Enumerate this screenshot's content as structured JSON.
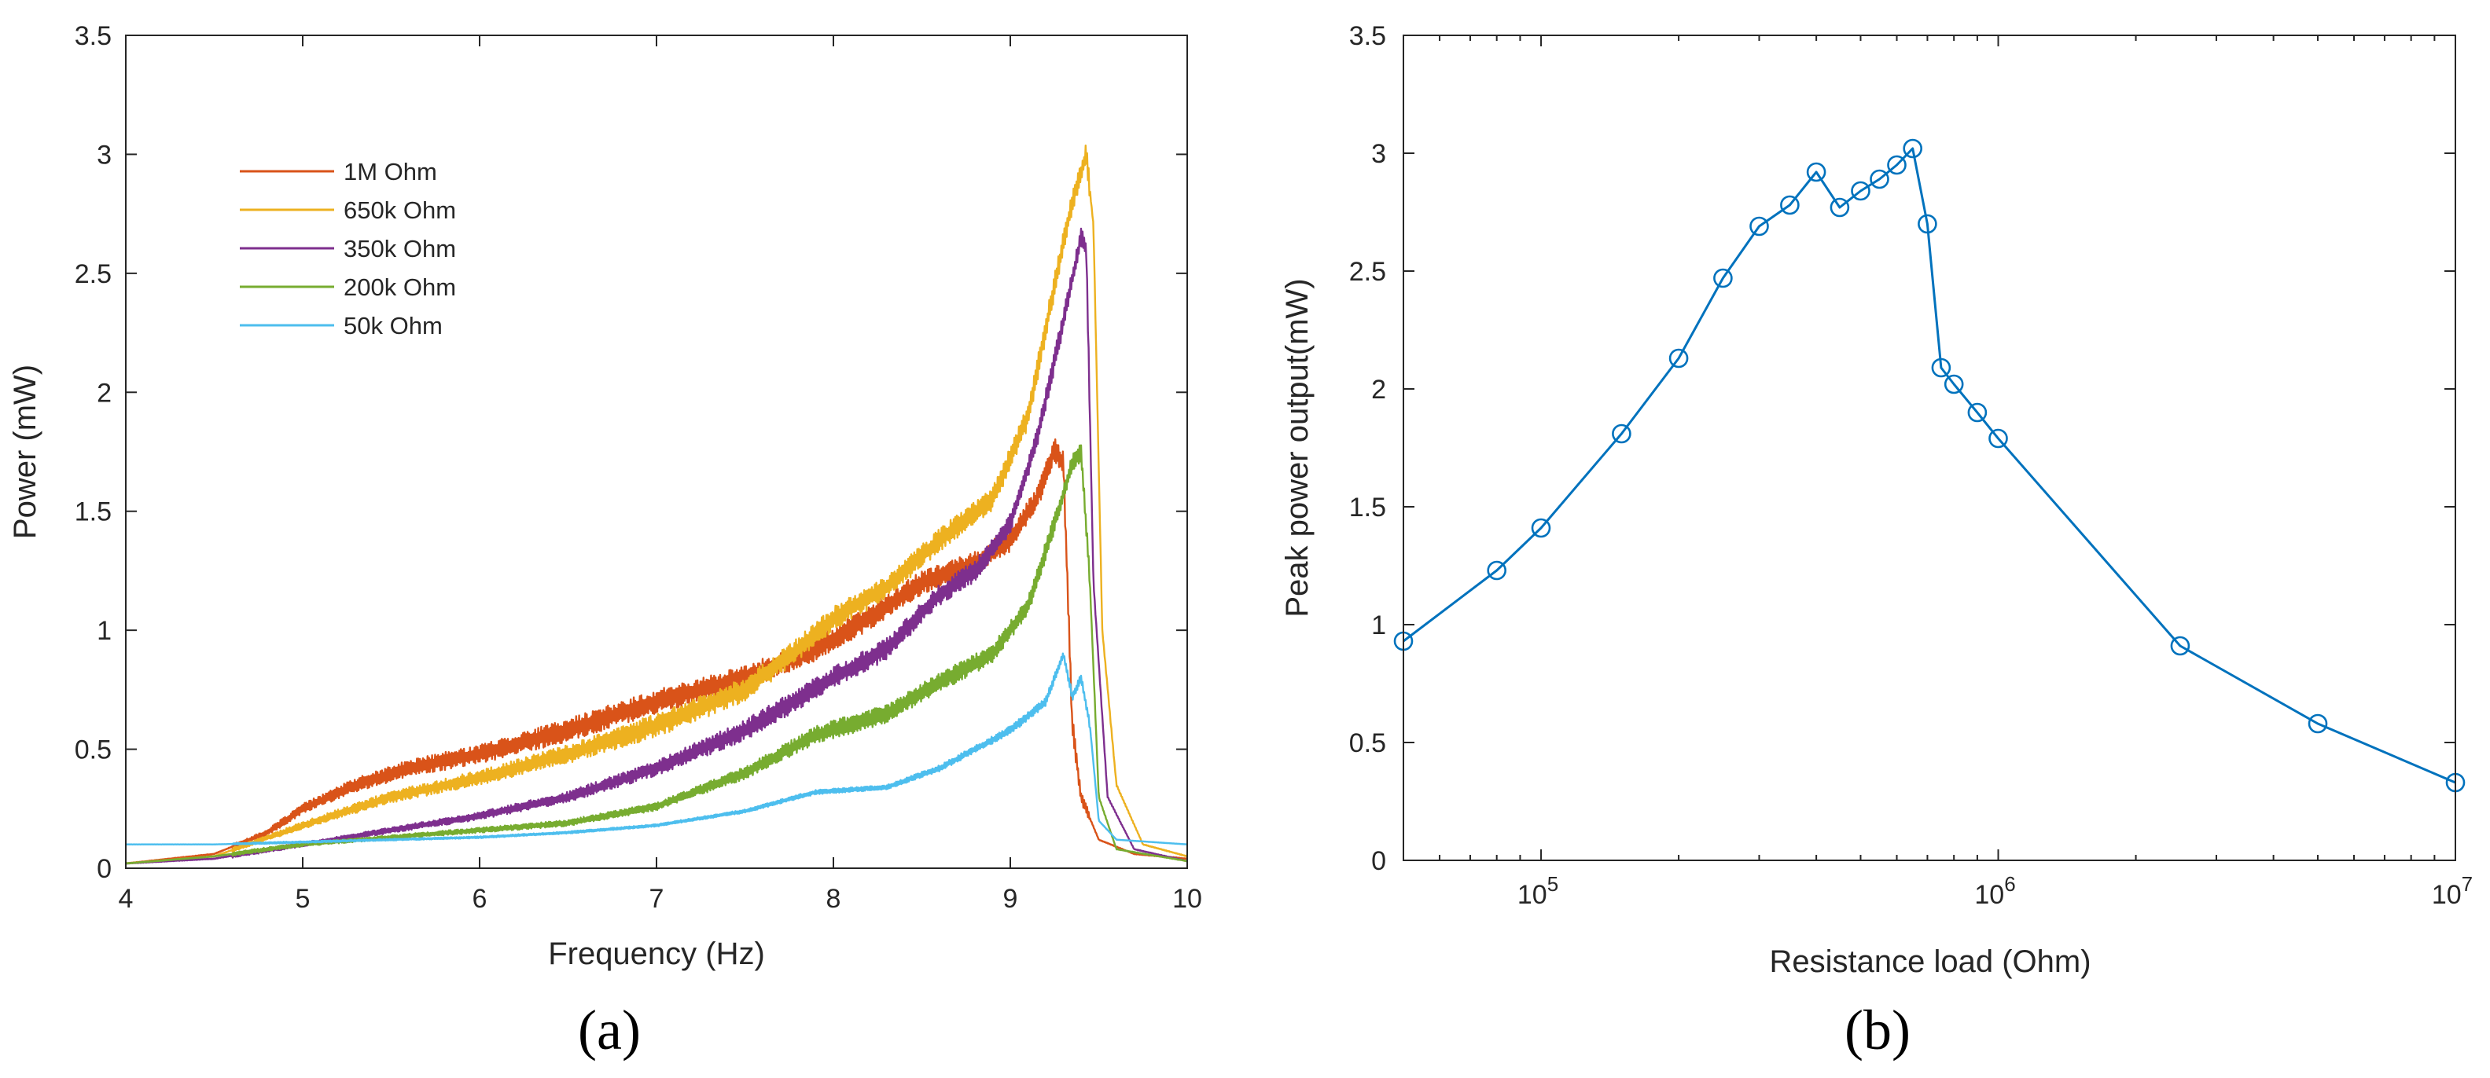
{
  "chart_data": [
    {
      "panel_label": "(a)",
      "type": "line",
      "title": "",
      "xlabel": "Frequency (Hz)",
      "ylabel": "Power (mW)",
      "xlim": [
        4,
        10
      ],
      "ylim": [
        0,
        3.5
      ],
      "xticks": [
        "4",
        "5",
        "6",
        "7",
        "8",
        "9",
        "10"
      ],
      "yticks": [
        "0",
        "0.5",
        "1",
        "1.5",
        "2",
        "2.5",
        "3",
        "3.5"
      ],
      "legend_position": "top-left",
      "series": [
        {
          "name": "1M Ohm",
          "color": "#D95319",
          "noise": 0.05,
          "points": [
            [
              4.0,
              0.02
            ],
            [
              4.5,
              0.06
            ],
            [
              4.8,
              0.15
            ],
            [
              5.0,
              0.25
            ],
            [
              5.3,
              0.35
            ],
            [
              5.6,
              0.42
            ],
            [
              6.0,
              0.48
            ],
            [
              6.5,
              0.58
            ],
            [
              7.0,
              0.7
            ],
            [
              7.5,
              0.8
            ],
            [
              7.9,
              0.92
            ],
            [
              8.2,
              1.05
            ],
            [
              8.5,
              1.2
            ],
            [
              8.8,
              1.28
            ],
            [
              9.0,
              1.38
            ],
            [
              9.15,
              1.55
            ],
            [
              9.25,
              1.76
            ],
            [
              9.3,
              1.7
            ],
            [
              9.35,
              0.6
            ],
            [
              9.4,
              0.3
            ],
            [
              9.5,
              0.12
            ],
            [
              9.7,
              0.06
            ],
            [
              10.0,
              0.04
            ]
          ]
        },
        {
          "name": "650k Ohm",
          "color": "#EDB120",
          "noise": 0.05,
          "points": [
            [
              4.0,
              0.02
            ],
            [
              4.5,
              0.05
            ],
            [
              5.0,
              0.18
            ],
            [
              5.5,
              0.3
            ],
            [
              6.0,
              0.38
            ],
            [
              6.5,
              0.48
            ],
            [
              7.0,
              0.6
            ],
            [
              7.5,
              0.75
            ],
            [
              7.8,
              0.92
            ],
            [
              8.0,
              1.05
            ],
            [
              8.3,
              1.18
            ],
            [
              8.6,
              1.38
            ],
            [
              8.9,
              1.55
            ],
            [
              9.1,
              1.9
            ],
            [
              9.25,
              2.45
            ],
            [
              9.35,
              2.8
            ],
            [
              9.43,
              3.0
            ],
            [
              9.47,
              2.7
            ],
            [
              9.52,
              1.0
            ],
            [
              9.6,
              0.35
            ],
            [
              9.75,
              0.1
            ],
            [
              10.0,
              0.05
            ]
          ]
        },
        {
          "name": "350k Ohm",
          "color": "#7E2F8E",
          "noise": 0.045,
          "points": [
            [
              4.0,
              0.02
            ],
            [
              4.5,
              0.04
            ],
            [
              5.0,
              0.1
            ],
            [
              5.5,
              0.16
            ],
            [
              6.0,
              0.22
            ],
            [
              6.5,
              0.3
            ],
            [
              7.0,
              0.42
            ],
            [
              7.5,
              0.58
            ],
            [
              8.0,
              0.8
            ],
            [
              8.3,
              0.92
            ],
            [
              8.6,
              1.15
            ],
            [
              8.8,
              1.25
            ],
            [
              9.0,
              1.45
            ],
            [
              9.15,
              1.8
            ],
            [
              9.3,
              2.3
            ],
            [
              9.4,
              2.65
            ],
            [
              9.43,
              2.6
            ],
            [
              9.47,
              1.2
            ],
            [
              9.55,
              0.3
            ],
            [
              9.7,
              0.08
            ],
            [
              10.0,
              0.03
            ]
          ]
        },
        {
          "name": "200k Ohm",
          "color": "#77AC30",
          "noise": 0.04,
          "points": [
            [
              4.0,
              0.02
            ],
            [
              4.5,
              0.05
            ],
            [
              5.0,
              0.1
            ],
            [
              5.5,
              0.13
            ],
            [
              6.0,
              0.16
            ],
            [
              6.5,
              0.19
            ],
            [
              7.0,
              0.26
            ],
            [
              7.5,
              0.4
            ],
            [
              7.9,
              0.56
            ],
            [
              8.3,
              0.65
            ],
            [
              8.6,
              0.78
            ],
            [
              8.9,
              0.9
            ],
            [
              9.1,
              1.1
            ],
            [
              9.25,
              1.45
            ],
            [
              9.35,
              1.7
            ],
            [
              9.4,
              1.75
            ],
            [
              9.45,
              1.2
            ],
            [
              9.5,
              0.3
            ],
            [
              9.6,
              0.08
            ],
            [
              10.0,
              0.03
            ]
          ]
        },
        {
          "name": "50k Ohm",
          "color": "#4DBEEE",
          "noise": 0.018,
          "points": [
            [
              4.0,
              0.1
            ],
            [
              4.5,
              0.1
            ],
            [
              5.0,
              0.11
            ],
            [
              5.5,
              0.12
            ],
            [
              6.0,
              0.13
            ],
            [
              6.5,
              0.15
            ],
            [
              7.0,
              0.18
            ],
            [
              7.5,
              0.24
            ],
            [
              7.9,
              0.32
            ],
            [
              8.3,
              0.34
            ],
            [
              8.6,
              0.42
            ],
            [
              8.8,
              0.5
            ],
            [
              9.0,
              0.58
            ],
            [
              9.2,
              0.7
            ],
            [
              9.3,
              0.9
            ],
            [
              9.35,
              0.72
            ],
            [
              9.4,
              0.8
            ],
            [
              9.45,
              0.6
            ],
            [
              9.5,
              0.2
            ],
            [
              9.6,
              0.12
            ],
            [
              10.0,
              0.1
            ]
          ]
        }
      ]
    },
    {
      "panel_label": "(b)",
      "type": "line",
      "title": "",
      "xlabel": "Resistance load (Ohm)",
      "ylabel": "Peak power output(mW)",
      "xscale": "log",
      "xlim": [
        50000,
        10000000
      ],
      "ylim": [
        0,
        3.5
      ],
      "xticks": [
        {
          "base": "10",
          "exp": "5",
          "value": 100000
        },
        {
          "base": "10",
          "exp": "6",
          "value": 1000000
        },
        {
          "base": "10",
          "exp": "7",
          "value": 10000000
        }
      ],
      "yticks": [
        "0",
        "0.5",
        "1",
        "1.5",
        "2",
        "2.5",
        "3",
        "3.5"
      ],
      "marker": "circle",
      "series": [
        {
          "name": "Peak power",
          "color": "#0072BD",
          "x": [
            50000,
            80000,
            100000,
            150000,
            200000,
            250000,
            300000,
            350000,
            400000,
            450000,
            500000,
            550000,
            600000,
            650000,
            700000,
            750000,
            800000,
            900000,
            1000000,
            2500000,
            5000000,
            10000000
          ],
          "y": [
            0.93,
            1.23,
            1.41,
            1.81,
            2.13,
            2.47,
            2.69,
            2.78,
            2.92,
            2.77,
            2.84,
            2.89,
            2.95,
            3.02,
            2.7,
            2.09,
            2.02,
            1.9,
            1.79,
            0.91,
            0.58,
            0.33
          ]
        }
      ]
    }
  ]
}
